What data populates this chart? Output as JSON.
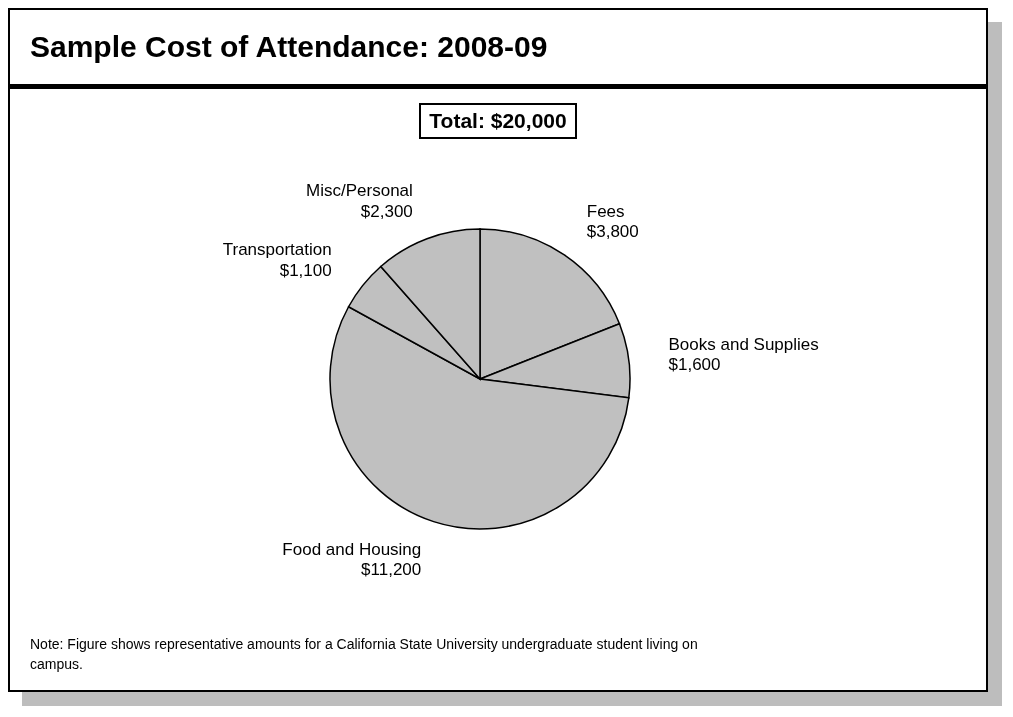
{
  "chart_data": {
    "type": "pie",
    "title": "Sample Cost of Attendance: 2008-09",
    "annotations": [
      "Total: $20,000",
      "Note: Figure shows representative amounts for a California State University undergraduate student living on campus."
    ],
    "categories": [
      "Fees",
      "Books and Supplies",
      "Food and Housing",
      "Transportation",
      "Misc/Personal"
    ],
    "values": [
      3800,
      1600,
      11200,
      1100,
      2300
    ],
    "value_labels": [
      "$3,800",
      "$1,600",
      "$11,200",
      "$1,100",
      "$2,300"
    ],
    "colors": [
      "#c0c0c0",
      "#c0c0c0",
      "#c0c0c0",
      "#c0c0c0",
      "#c0c0c0"
    ]
  }
}
